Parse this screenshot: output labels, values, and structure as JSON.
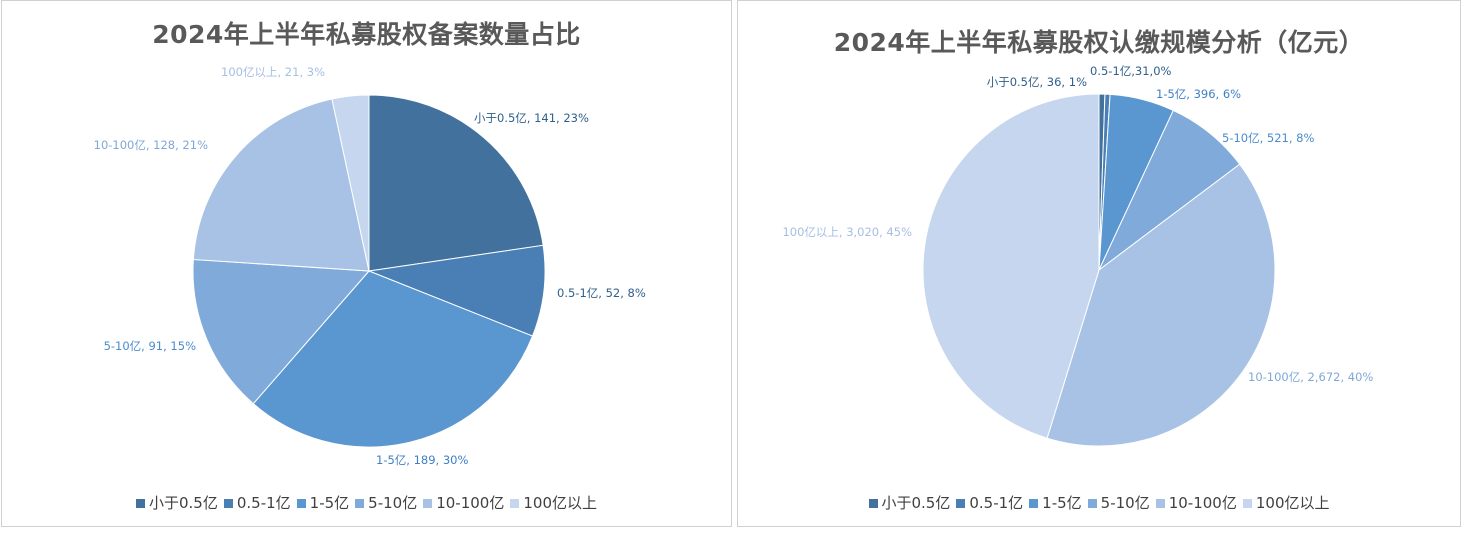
{
  "colors": [
    "#41719c",
    "#4a7fb5",
    "#5a96d0",
    "#7faad9",
    "#a7c2e5",
    "#c5d6ee"
  ],
  "label_colors": [
    "#2f5f8a",
    "#2f5f8a",
    "#3f80c4",
    "#4a8ccc",
    "#7fa8d8",
    "#a4bfe2"
  ],
  "chart_data": [
    {
      "type": "pie",
      "title": "2024年上半年私募股权备案数量占比",
      "categories": [
        "小于0.5亿",
        "0.5-1亿",
        "1-5亿",
        "5-10亿",
        "10-100亿",
        "100亿以上"
      ],
      "values": [
        141,
        52,
        189,
        91,
        128,
        21
      ],
      "data_labels": [
        "小于0.5亿, 141, 23%",
        "0.5-1亿, 52, 8%",
        "1-5亿, 189, 30%",
        "5-10亿, 91, 15%",
        "10-100亿, 128, 21%",
        "100亿以上, 21, 3%"
      ],
      "legend": [
        "小于0.5亿",
        "0.5-1亿",
        "1-5亿",
        "5-10亿",
        "10-100亿",
        "100亿以上"
      ],
      "legend_position": "bottom"
    },
    {
      "type": "pie",
      "title": "2024年上半年私募股权认缴规模分析（亿元）",
      "categories": [
        "小于0.5亿",
        "0.5-1亿",
        "1-5亿",
        "5-10亿",
        "10-100亿",
        "100亿以上"
      ],
      "values": [
        36,
        31,
        396,
        521,
        2672,
        3020
      ],
      "data_labels": [
        "小于0.5亿, 36, 1%",
        "0.5-1亿,31,0%",
        "1-5亿, 396, 6%",
        "5-10亿, 521, 8%",
        "10-100亿, 2,672, 40%",
        "100亿以上, 3,020, 45%"
      ],
      "legend": [
        "小于0.5亿",
        "0.5-1亿",
        "1-5亿",
        "5-10亿",
        "10-100亿",
        "100亿以上"
      ],
      "legend_position": "bottom"
    }
  ]
}
